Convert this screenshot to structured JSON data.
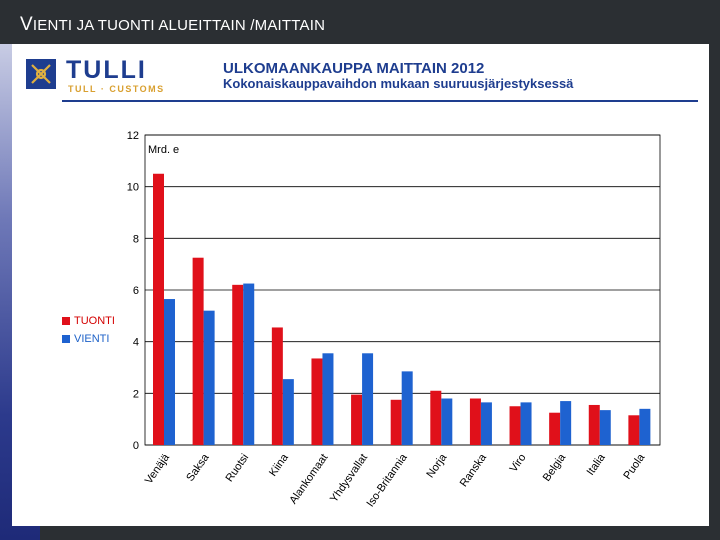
{
  "slide": {
    "title_first_letter": "V",
    "title_rest": "IENTI JA TUONTI ALUEITTAIN /MAITTAIN"
  },
  "logo": {
    "name": "TULLI",
    "subtitle": "TULL · CUSTOMS",
    "icon": "customs-emblem-icon"
  },
  "colors": {
    "tuonti": "#e0101a",
    "vienti": "#1e62d0",
    "brand": "#1e3d8f"
  },
  "chart_data": {
    "type": "bar",
    "title": "ULKOMAANKAUPPA MAITTAIN 2012",
    "subtitle": "Kokonaiskauppavaihdon mukaan suuruusjärjestyksessä",
    "unit_label": "Mrd. e",
    "ylim": [
      0,
      12
    ],
    "yticks": [
      0,
      2,
      4,
      6,
      8,
      10,
      12
    ],
    "grid": true,
    "legend_position": "left",
    "categories": [
      "Venäjä",
      "Saksa",
      "Ruotsi",
      "Kiina",
      "Alankomaat",
      "Yhdysvallat",
      "Iso-Britannia",
      "Norja",
      "Ranska",
      "Viro",
      "Belgia",
      "Italia",
      "Puola"
    ],
    "series": [
      {
        "name": "TUONTI",
        "values": [
          10.5,
          7.25,
          6.2,
          4.55,
          3.35,
          1.95,
          1.75,
          2.1,
          1.8,
          1.5,
          1.25,
          1.55,
          1.15
        ]
      },
      {
        "name": "VIENTI",
        "values": [
          5.65,
          5.2,
          6.25,
          2.55,
          3.55,
          3.55,
          2.85,
          1.8,
          1.65,
          1.65,
          1.7,
          1.35,
          1.4
        ]
      }
    ]
  }
}
